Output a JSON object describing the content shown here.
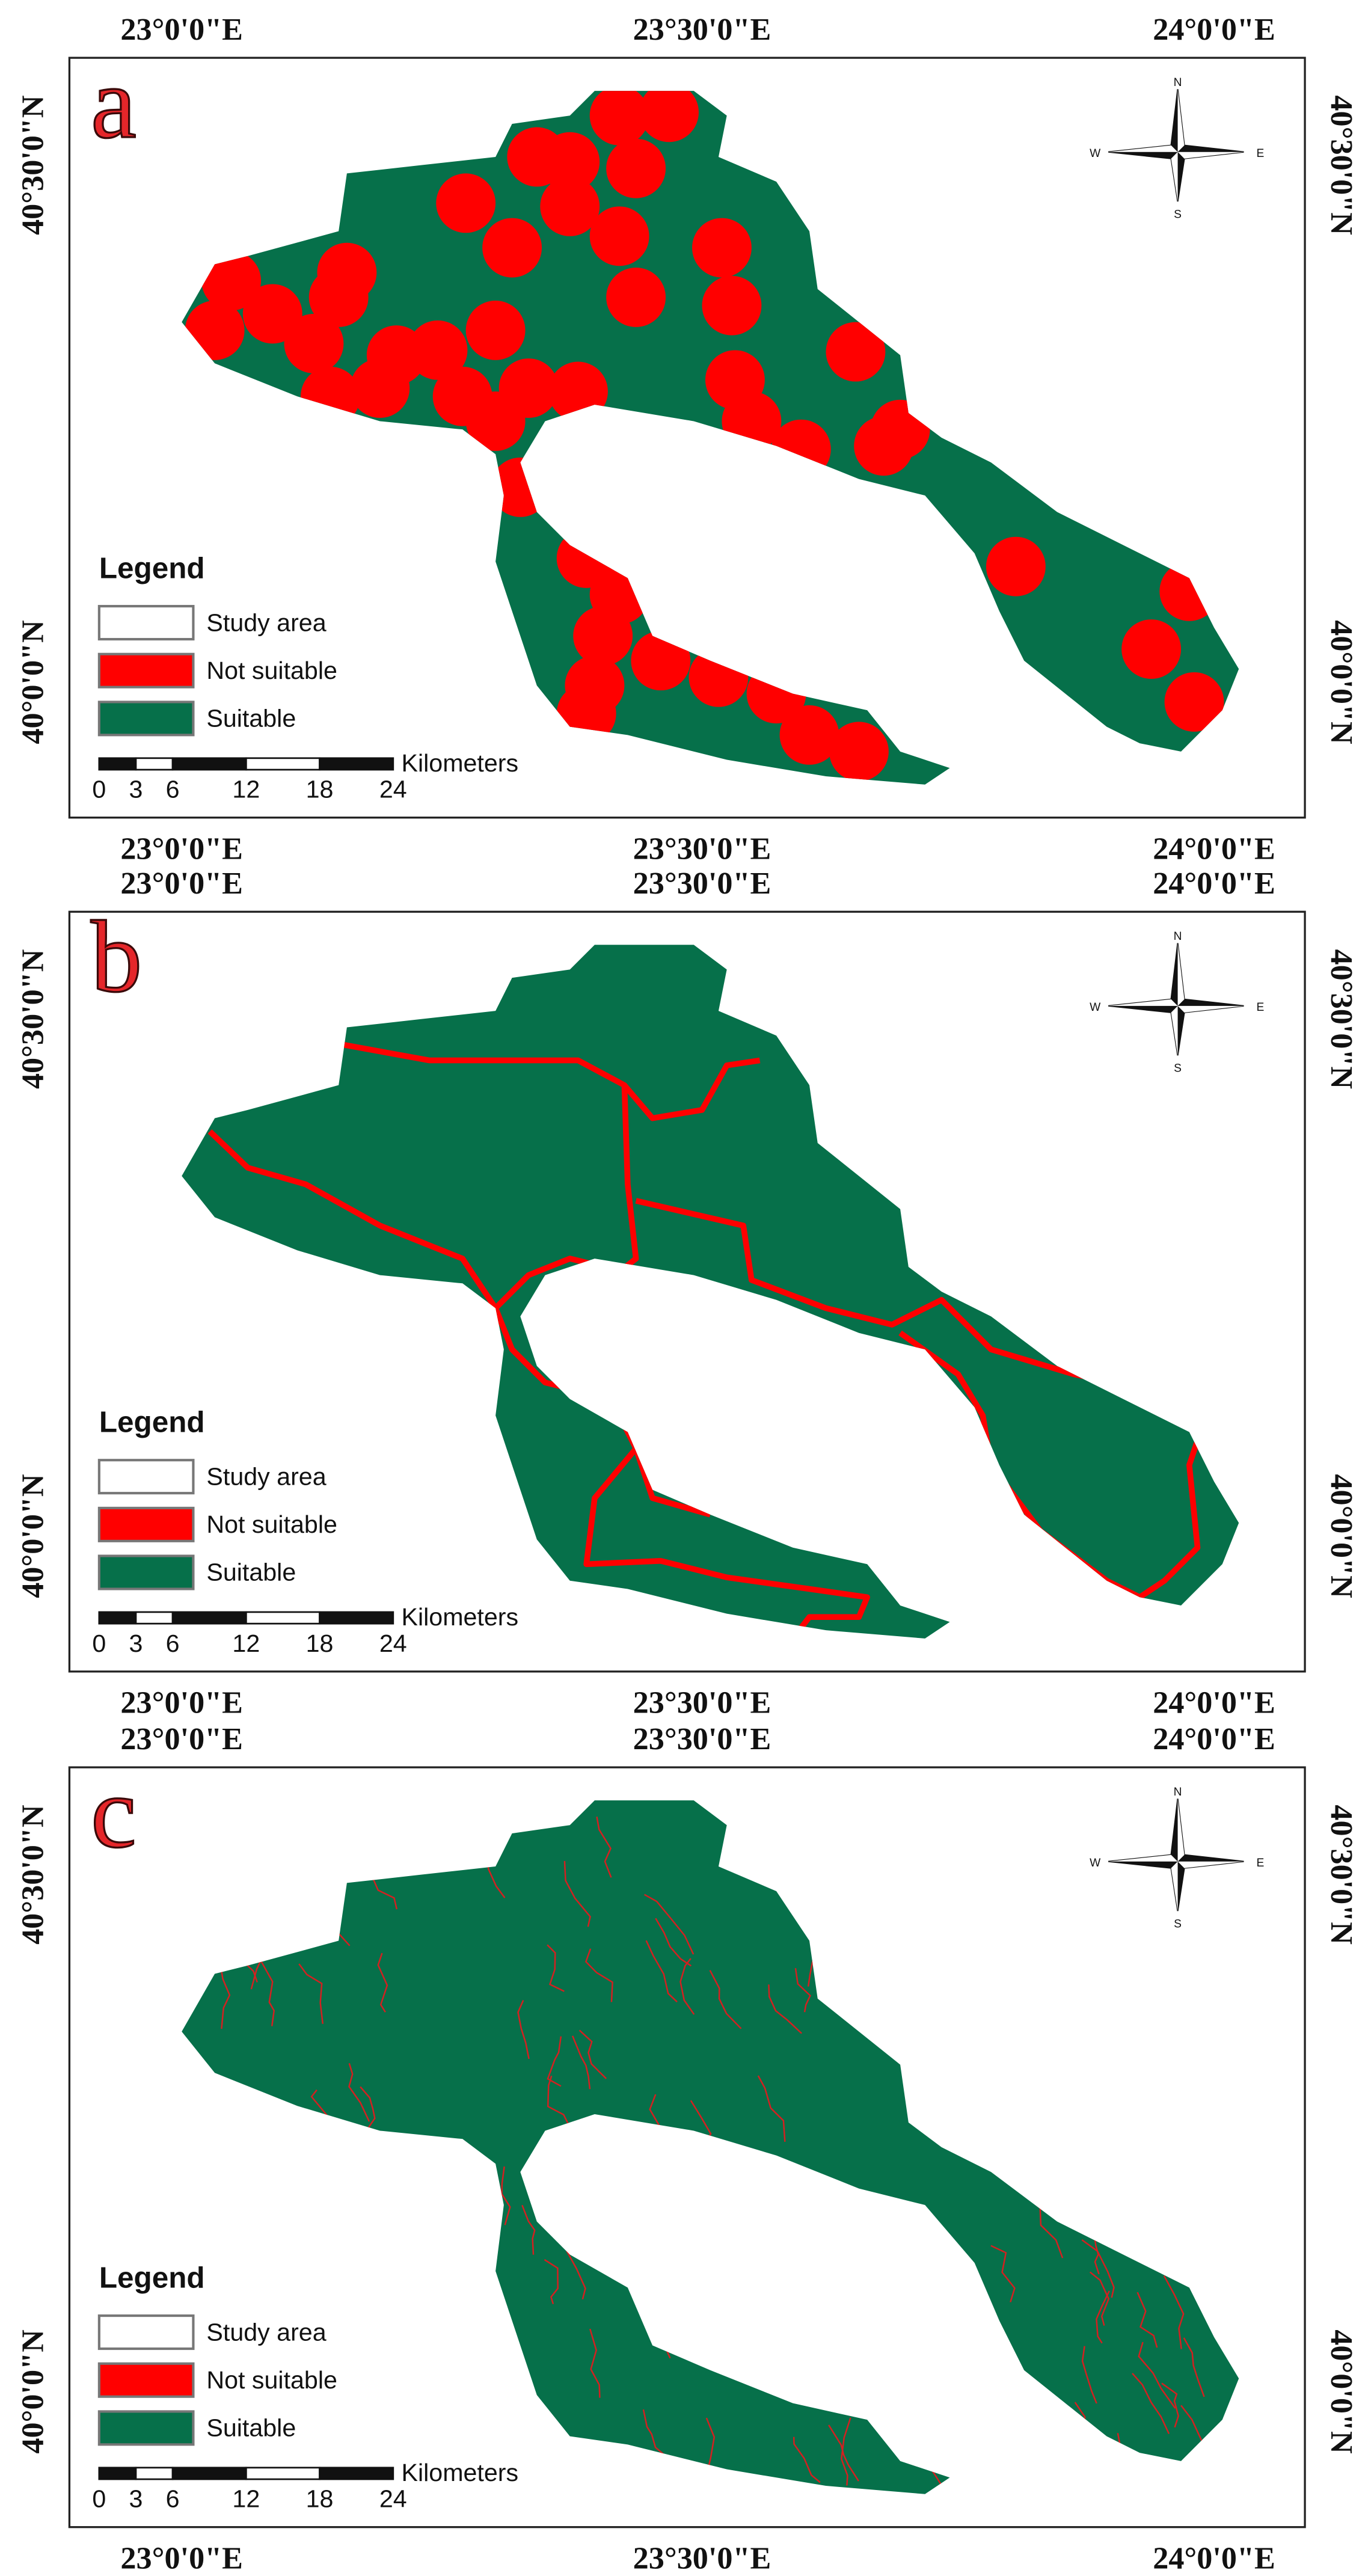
{
  "panels": [
    {
      "label": "a",
      "top_labels": [
        "23°0'0\"E",
        "23°30'0\"E",
        "24°0'0\"E"
      ],
      "bottom_labels": [
        "23°0'0\"E",
        "23°30'0\"E",
        "24°0'0\"E"
      ],
      "left_labels": [
        "40°30'0\"N",
        "40°0'0\"N"
      ],
      "right_labels": [
        "40°30'0\"N",
        "40°0'0\"N"
      ],
      "legend": {
        "title": "Legend",
        "items": [
          "Study area",
          "Not suitable",
          "Suitable"
        ]
      },
      "scale": {
        "unit": "Kilometers",
        "ticks": [
          0,
          3,
          6,
          12,
          18,
          24
        ]
      },
      "compass": [
        "N",
        "E",
        "S",
        "W"
      ]
    },
    {
      "label": "b",
      "top_labels": [
        "23°0'0\"E",
        "23°30'0\"E",
        "24°0'0\"E"
      ],
      "bottom_labels": [
        "23°0'0\"E",
        "23°30'0\"E",
        "24°0'0\"E"
      ],
      "left_labels": [
        "40°30'0\"N",
        "40°0'0\"N"
      ],
      "right_labels": [
        "40°30'0\"N",
        "40°0'0\"N"
      ],
      "legend": {
        "title": "Legend",
        "items": [
          "Study area",
          "Not suitable",
          "Suitable"
        ]
      },
      "scale": {
        "unit": "Kilometers",
        "ticks": [
          0,
          3,
          6,
          12,
          18,
          24
        ]
      },
      "compass": [
        "N",
        "E",
        "S",
        "W"
      ]
    },
    {
      "label": "c",
      "top_labels": [
        "23°0'0\"E",
        "23°30'0\"E",
        "24°0'0\"E"
      ],
      "bottom_labels": [
        "23°0'0\"E",
        "23°30'0\"E",
        "24°0'0\"E"
      ],
      "left_labels": [
        "40°30'0\"N",
        "40°0'0\"N"
      ],
      "right_labels": [
        "40°30'0\"N",
        "40°0'0\"N"
      ],
      "legend": {
        "title": "Legend",
        "items": [
          "Study area",
          "Not suitable",
          "Suitable"
        ]
      },
      "scale": {
        "unit": "Kilometers",
        "ticks": [
          0,
          3,
          6,
          12,
          18,
          24
        ]
      },
      "compass": [
        "N",
        "E",
        "S",
        "W"
      ]
    }
  ]
}
